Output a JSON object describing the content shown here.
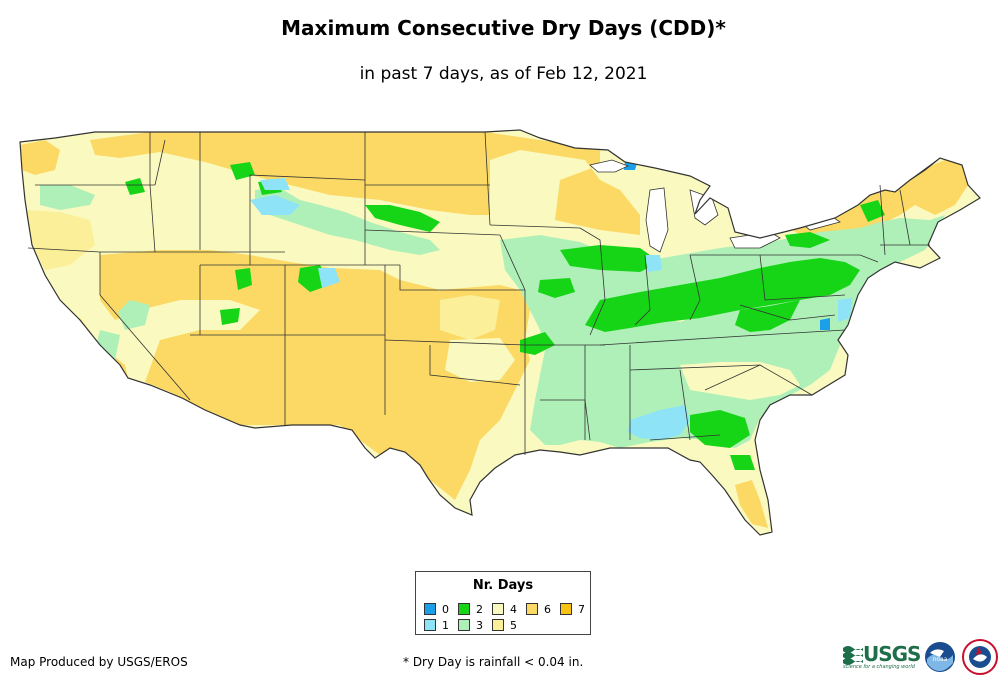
{
  "title": "Maximum Consecutive Dry Days (CDD)*",
  "subtitle": "in past 7 days, as of Feb 12, 2021",
  "legend": {
    "title": "Nr. Days",
    "items": [
      {
        "label": "0",
        "color": "#1a9fe8"
      },
      {
        "label": "1",
        "color": "#8fe3f7"
      },
      {
        "label": "2",
        "color": "#16d416"
      },
      {
        "label": "3",
        "color": "#aef0b8"
      },
      {
        "label": "4",
        "color": "#fafac0"
      },
      {
        "label": "5",
        "color": "#fbef9a"
      },
      {
        "label": "6",
        "color": "#fbd964"
      },
      {
        "label": "7",
        "color": "#f9c314"
      }
    ]
  },
  "credit": "Map Produced by USGS/EROS",
  "footnote": "* Dry Day is rainfall < 0.04 in.",
  "logos": {
    "usgs": {
      "text": "USGS",
      "tagline": "science for a changing world",
      "color": "#1e6e4a"
    },
    "noaa": {
      "text": "noaa",
      "color": "#1a4d8f"
    },
    "nws": {
      "text": "NATIONAL WEATHER SERVICE",
      "color": "#c8102e"
    }
  },
  "map": {
    "name": "Contiguous United States",
    "border_color": "#333333",
    "lake_color": "#ffffff"
  }
}
